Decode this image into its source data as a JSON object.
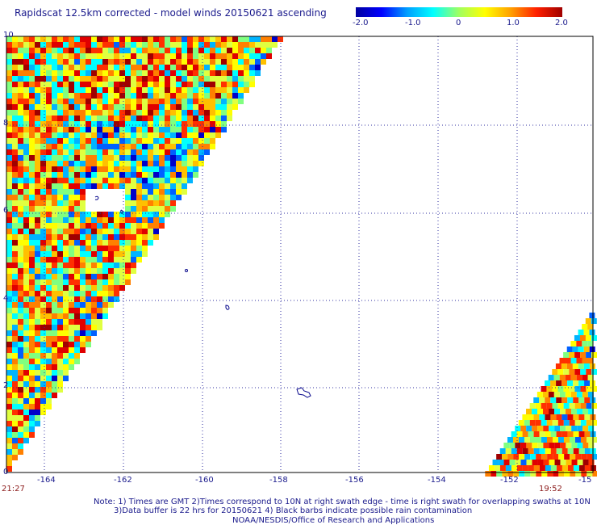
{
  "title": "Rapidscat 12.5km corrected - model winds 20150621 ascending",
  "colorbar": {
    "labels": [
      "-2.0",
      "-1.0",
      "0",
      "1.0",
      "2.0"
    ],
    "stops": [
      "#0000a0",
      "#0000ff",
      "#00a0ff",
      "#00ffff",
      "#a0ff60",
      "#ffff00",
      "#ffa000",
      "#ff2000",
      "#a00000"
    ]
  },
  "axes": {
    "x_ticks": [
      "-164",
      "-162",
      "-160",
      "-158",
      "-156",
      "-154",
      "-152",
      "-15"
    ],
    "y_ticks": [
      "10",
      "8",
      "6",
      "4",
      "2",
      "0"
    ]
  },
  "times": {
    "left": "21:27",
    "right": "19:52"
  },
  "notes": {
    "line1": "Note: 1) Times are GMT 2)Times correspond to 10N at right swath edge - time is right swath for overlapping swaths at 10N",
    "line2": "3)Data buffer is 22 hrs for 20150621 4) Black barbs indicate possible rain contamination",
    "line3": "NOAA/NESDIS/Office of Research and Applications"
  },
  "colors": {
    "grid": "#3030a0",
    "text": "#1a1a8c",
    "time": "#8b1a1a",
    "coast": "#0a0a8c"
  }
}
